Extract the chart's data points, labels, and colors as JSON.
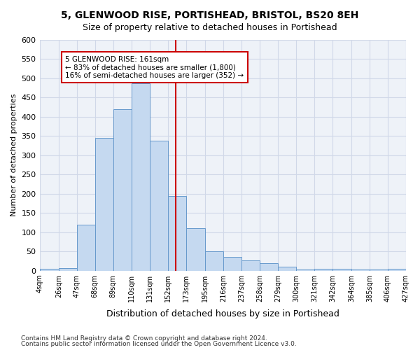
{
  "title1": "5, GLENWOOD RISE, PORTISHEAD, BRISTOL, BS20 8EH",
  "title2": "Size of property relative to detached houses in Portishead",
  "xlabel": "Distribution of detached houses by size in Portishead",
  "ylabel": "Number of detached properties",
  "categories": [
    "4sqm",
    "26sqm",
    "47sqm",
    "68sqm",
    "89sqm",
    "110sqm",
    "131sqm",
    "152sqm",
    "173sqm",
    "195sqm",
    "216sqm",
    "237sqm",
    "258sqm",
    "279sqm",
    "300sqm",
    "321sqm",
    "342sqm",
    "364sqm",
    "385sqm",
    "406sqm",
    "427sqm"
  ],
  "values": [
    5,
    7,
    120,
    345,
    420,
    487,
    338,
    193,
    110,
    50,
    35,
    26,
    20,
    10,
    3,
    5,
    5,
    3,
    3,
    5
  ],
  "bar_color": "#c5d9f0",
  "bar_edge_color": "#6699cc",
  "grid_color": "#d0d8e8",
  "ax_bg_color": "#eef2f8",
  "background_color": "#ffffff",
  "property_line_x": 161,
  "annotation_title": "5 GLENWOOD RISE: 161sqm",
  "annotation_line1": "← 83% of detached houses are smaller (1,800)",
  "annotation_line2": "16% of semi-detached houses are larger (352) →",
  "annotation_box_color": "#ffffff",
  "annotation_box_edge": "#cc0000",
  "vline_color": "#cc0000",
  "footer1": "Contains HM Land Registry data © Crown copyright and database right 2024.",
  "footer2": "Contains public sector information licensed under the Open Government Licence v3.0.",
  "bin_edges": [
    4,
    26,
    47,
    68,
    89,
    110,
    131,
    152,
    173,
    195,
    216,
    237,
    258,
    279,
    300,
    321,
    342,
    364,
    385,
    406,
    427
  ],
  "ylim": [
    0,
    600
  ],
  "yticks": [
    0,
    50,
    100,
    150,
    200,
    250,
    300,
    350,
    400,
    450,
    500,
    550,
    600
  ]
}
